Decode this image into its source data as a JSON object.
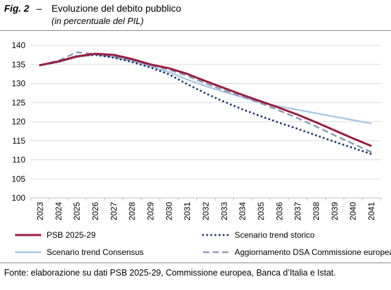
{
  "figure": {
    "number": "Fig. 2",
    "dash": "–",
    "title": "Evoluzione del debito pubblico",
    "subtitle": "(in percentuale del PIL)"
  },
  "source": "Fonte: elaborazione su dati PSB 2025-29, Commissione europea, Banca d’Italia e Istat.",
  "chart_data": {
    "type": "line",
    "title": "Evoluzione del debito pubblico",
    "subtitle": "(in percentuale del PIL)",
    "xlabel": "",
    "ylabel": "",
    "x": [
      "2023",
      "2024",
      "2025",
      "2026",
      "2027",
      "2028",
      "2029",
      "2030",
      "2031",
      "2032",
      "2033",
      "2034",
      "2035",
      "2036",
      "2037",
      "2038",
      "2039",
      "2040",
      "2041"
    ],
    "ylim": [
      100,
      140
    ],
    "yticks": [
      100,
      105,
      110,
      115,
      120,
      125,
      130,
      135,
      140
    ],
    "grid": "horizontal",
    "legend_position": "bottom",
    "series": [
      {
        "name": "PSB 2025-29",
        "color": "#9b1b3f",
        "style": "solid",
        "values": [
          134.8,
          135.8,
          137.1,
          137.8,
          137.5,
          136.4,
          135.0,
          134.0,
          132.5,
          130.6,
          128.8,
          127.0,
          125.3,
          123.6,
          121.8,
          119.8,
          117.7,
          115.6,
          113.6
        ]
      },
      {
        "name": "Scenario trend storico",
        "color": "#1f3b6e",
        "style": "dotted",
        "values": [
          134.8,
          135.7,
          137.2,
          137.5,
          136.8,
          135.6,
          134.2,
          132.4,
          129.8,
          127.4,
          125.2,
          123.2,
          121.4,
          119.7,
          118.1,
          116.4,
          114.7,
          113.1,
          111.5
        ]
      },
      {
        "name": "Scenario trend Consensus",
        "color": "#a9c8e6",
        "style": "solid",
        "values": [
          134.8,
          135.6,
          136.9,
          137.6,
          136.9,
          135.9,
          134.5,
          133.0,
          131.0,
          129.3,
          127.8,
          126.4,
          125.0,
          124.0,
          123.1,
          122.2,
          121.3,
          120.4,
          119.5
        ]
      },
      {
        "name": "Aggiornamento DSA Commissione europea",
        "color": "#8e9bb5",
        "style": "dashed",
        "values": [
          134.8,
          136.0,
          138.2,
          137.7,
          137.0,
          136.1,
          134.8,
          133.6,
          132.0,
          130.0,
          128.2,
          126.5,
          124.8,
          122.9,
          120.9,
          118.7,
          116.4,
          114.2,
          112.0
        ]
      }
    ]
  }
}
